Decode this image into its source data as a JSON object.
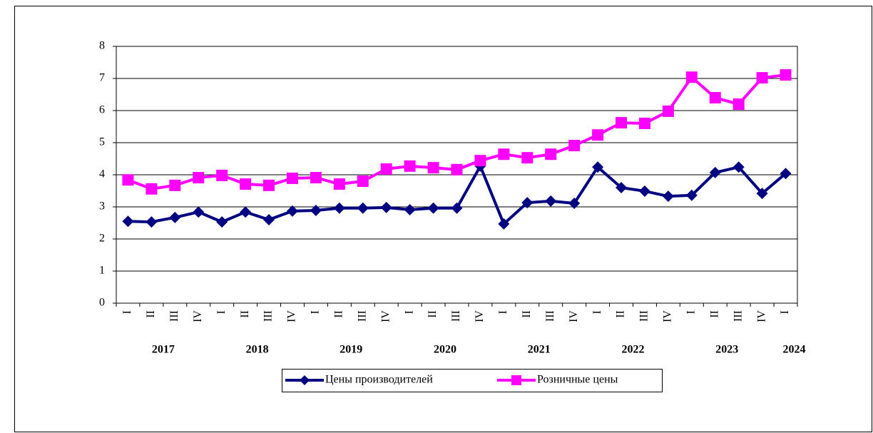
{
  "chart_data": {
    "type": "line",
    "categories": [
      "I",
      "II",
      "III",
      "IV",
      "I",
      "II",
      "III",
      "IV",
      "I",
      "II",
      "III",
      "IV",
      "I",
      "II",
      "III",
      "IV",
      "I",
      "II",
      "III",
      "IV",
      "I",
      "II",
      "III",
      "IV",
      "I",
      "II",
      "III",
      "IV",
      "I"
    ],
    "years": [
      "2017",
      "2018",
      "2019",
      "2020",
      "2021",
      "2022",
      "2023",
      "2024"
    ],
    "series": [
      {
        "name": "Цены производителей",
        "color": "#000080",
        "marker": "diamond",
        "values": [
          2.55,
          2.53,
          2.67,
          2.84,
          2.53,
          2.84,
          2.6,
          2.87,
          2.89,
          2.96,
          2.96,
          2.98,
          2.91,
          2.96,
          2.96,
          4.27,
          2.47,
          3.13,
          3.18,
          3.11,
          4.24,
          3.6,
          3.49,
          3.33,
          3.36,
          4.07,
          4.24,
          3.42,
          4.04
        ]
      },
      {
        "name": "Розничные цены",
        "color": "#ff00ff",
        "marker": "square",
        "values": [
          3.84,
          3.56,
          3.67,
          3.91,
          3.98,
          3.71,
          3.67,
          3.89,
          3.91,
          3.71,
          3.8,
          4.18,
          4.27,
          4.22,
          4.16,
          4.44,
          4.64,
          4.53,
          4.64,
          4.91,
          5.24,
          5.62,
          5.6,
          5.98,
          7.04,
          6.4,
          6.2,
          7.02,
          7.11
        ]
      }
    ],
    "ylim": [
      0,
      8
    ],
    "yticks": [
      0,
      1,
      2,
      3,
      4,
      5,
      6,
      7,
      8
    ],
    "grid": true
  }
}
